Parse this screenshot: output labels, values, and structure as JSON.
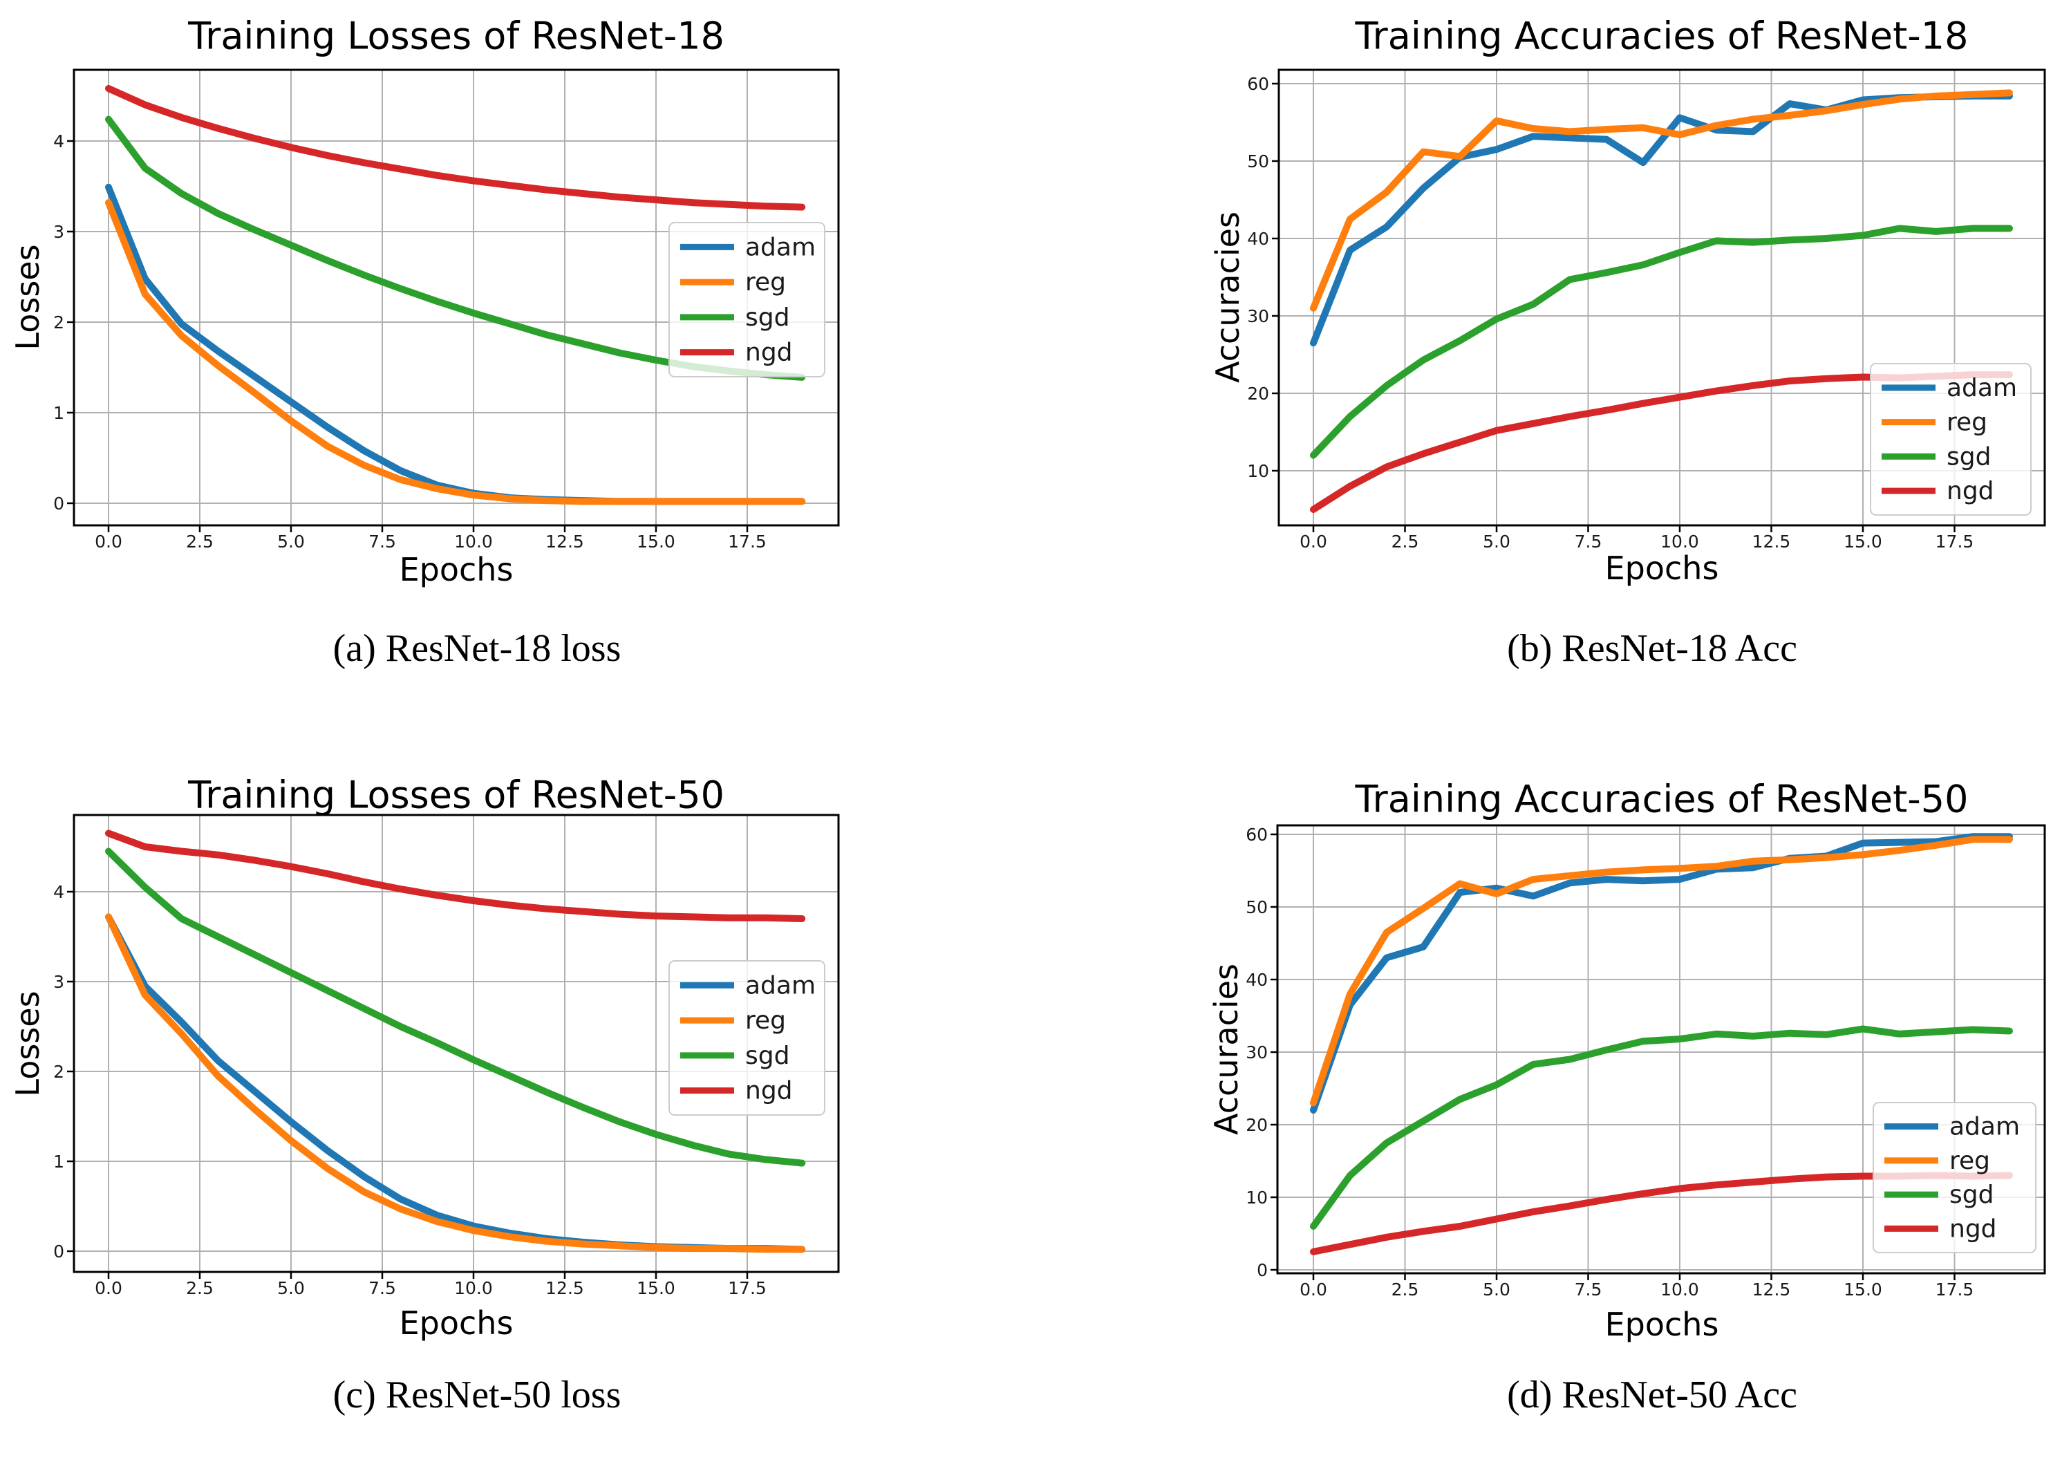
{
  "page": {
    "background": "#ffffff"
  },
  "colors": {
    "adam": "#1f77b4",
    "reg": "#ff7f0e",
    "sgd": "#2ca02c",
    "ngd": "#d62728",
    "grid": "#b0b0b0",
    "spine": "#000000",
    "legend_border": "#cccccc"
  },
  "chart_data": [
    {
      "id": "resnet18-loss",
      "type": "line",
      "title": "Training Losses of ResNet-18",
      "xlabel": "Epochs",
      "ylabel": "Losses",
      "caption": "(a) ResNet-18 loss",
      "x": [
        0,
        1,
        2,
        3,
        4,
        5,
        6,
        7,
        8,
        9,
        10,
        11,
        12,
        13,
        14,
        15,
        16,
        17,
        18,
        19
      ],
      "xlim": [
        -0.95,
        19.95
      ],
      "ylim": [
        -0.24,
        4.79
      ],
      "xticks": {
        "values": [
          0,
          2.5,
          5,
          7.5,
          10,
          12.5,
          15,
          17.5
        ],
        "labels": [
          "0.0",
          "2.5",
          "5.0",
          "7.5",
          "10.0",
          "12.5",
          "15.0",
          "17.5"
        ]
      },
      "yticks": {
        "values": [
          0,
          1,
          2,
          3,
          4
        ],
        "labels": [
          "0",
          "1",
          "2",
          "3",
          "4"
        ]
      },
      "grid": true,
      "legend_loc": "center right",
      "series": [
        {
          "name": "adam",
          "color": "#1f77b4",
          "values": [
            3.49,
            2.48,
            1.98,
            1.68,
            1.4,
            1.12,
            0.84,
            0.58,
            0.36,
            0.2,
            0.11,
            0.06,
            0.04,
            0.03,
            0.02,
            0.02,
            0.02,
            0.02,
            0.02,
            0.02
          ]
        },
        {
          "name": "reg",
          "color": "#ff7f0e",
          "values": [
            3.32,
            2.31,
            1.85,
            1.52,
            1.22,
            0.91,
            0.63,
            0.42,
            0.26,
            0.16,
            0.09,
            0.05,
            0.03,
            0.02,
            0.02,
            0.02,
            0.02,
            0.02,
            0.02,
            0.02
          ]
        },
        {
          "name": "sgd",
          "color": "#2ca02c",
          "values": [
            4.24,
            3.7,
            3.42,
            3.2,
            3.02,
            2.85,
            2.68,
            2.52,
            2.37,
            2.23,
            2.1,
            1.98,
            1.86,
            1.76,
            1.66,
            1.58,
            1.51,
            1.46,
            1.42,
            1.39
          ]
        },
        {
          "name": "ngd",
          "color": "#d62728",
          "values": [
            4.58,
            4.4,
            4.26,
            4.14,
            4.03,
            3.93,
            3.84,
            3.76,
            3.69,
            3.62,
            3.56,
            3.51,
            3.46,
            3.42,
            3.38,
            3.35,
            3.32,
            3.3,
            3.28,
            3.27
          ]
        }
      ]
    },
    {
      "id": "resnet18-acc",
      "type": "line",
      "title": "Training Accuracies of ResNet-18",
      "xlabel": "Epochs",
      "ylabel": "Accuracies",
      "caption": "(b) ResNet-18 Acc",
      "x": [
        0,
        1,
        2,
        3,
        4,
        5,
        6,
        7,
        8,
        9,
        10,
        11,
        12,
        13,
        14,
        15,
        16,
        17,
        18,
        19
      ],
      "xlim": [
        -0.95,
        19.95
      ],
      "ylim": [
        2.95,
        61.8
      ],
      "xticks": {
        "values": [
          0,
          2.5,
          5,
          7.5,
          10,
          12.5,
          15,
          17.5
        ],
        "labels": [
          "0.0",
          "2.5",
          "5.0",
          "7.5",
          "10.0",
          "12.5",
          "15.0",
          "17.5"
        ]
      },
      "yticks": {
        "values": [
          10,
          20,
          30,
          40,
          50,
          60
        ],
        "labels": [
          "10",
          "20",
          "30",
          "40",
          "50",
          "60"
        ]
      },
      "grid": true,
      "legend_loc": "lower right",
      "series": [
        {
          "name": "adam",
          "color": "#1f77b4",
          "values": [
            26.5,
            38.5,
            41.5,
            46.5,
            50.5,
            51.5,
            53.2,
            53.0,
            52.8,
            49.8,
            55.6,
            54.0,
            53.8,
            57.4,
            56.6,
            57.9,
            58.2,
            58.3,
            58.4,
            58.4
          ]
        },
        {
          "name": "reg",
          "color": "#ff7f0e",
          "values": [
            31.0,
            42.5,
            46.0,
            51.2,
            50.6,
            55.2,
            54.2,
            53.8,
            54.1,
            54.3,
            53.4,
            54.6,
            55.4,
            55.9,
            56.5,
            57.3,
            58.0,
            58.4,
            58.6,
            58.8
          ]
        },
        {
          "name": "sgd",
          "color": "#2ca02c",
          "values": [
            12.0,
            17.0,
            21.0,
            24.3,
            26.8,
            29.6,
            31.5,
            34.7,
            35.6,
            36.6,
            38.2,
            39.7,
            39.5,
            39.8,
            40.0,
            40.4,
            41.3,
            40.9,
            41.3,
            41.3
          ]
        },
        {
          "name": "ngd",
          "color": "#d62728",
          "values": [
            5.0,
            8.0,
            10.5,
            12.2,
            13.7,
            15.2,
            16.1,
            17.0,
            17.8,
            18.7,
            19.5,
            20.3,
            21.0,
            21.6,
            21.9,
            22.1,
            22.0,
            22.2,
            22.4,
            22.4
          ]
        }
      ]
    },
    {
      "id": "resnet50-loss",
      "type": "line",
      "title": "Training Losses of ResNet-50",
      "xlabel": "Epochs",
      "ylabel": "Losses",
      "caption": "(c) ResNet-50 loss",
      "x": [
        0,
        1,
        2,
        3,
        4,
        5,
        6,
        7,
        8,
        9,
        10,
        11,
        12,
        13,
        14,
        15,
        16,
        17,
        18,
        19
      ],
      "xlim": [
        -0.95,
        19.95
      ],
      "ylim": [
        -0.23,
        4.85
      ],
      "xticks": {
        "values": [
          0,
          2.5,
          5,
          7.5,
          10,
          12.5,
          15,
          17.5
        ],
        "labels": [
          "0.0",
          "2.5",
          "5.0",
          "7.5",
          "10.0",
          "12.5",
          "15.0",
          "17.5"
        ]
      },
      "yticks": {
        "values": [
          0,
          1,
          2,
          3,
          4
        ],
        "labels": [
          "0",
          "1",
          "2",
          "3",
          "4"
        ]
      },
      "grid": true,
      "legend_loc": "center right",
      "series": [
        {
          "name": "adam",
          "color": "#1f77b4",
          "values": [
            3.72,
            2.95,
            2.55,
            2.12,
            1.78,
            1.44,
            1.12,
            0.83,
            0.58,
            0.4,
            0.28,
            0.2,
            0.14,
            0.1,
            0.07,
            0.05,
            0.04,
            0.03,
            0.03,
            0.02
          ]
        },
        {
          "name": "reg",
          "color": "#ff7f0e",
          "values": [
            3.72,
            2.85,
            2.42,
            1.95,
            1.58,
            1.23,
            0.92,
            0.66,
            0.47,
            0.33,
            0.23,
            0.16,
            0.11,
            0.08,
            0.06,
            0.04,
            0.03,
            0.03,
            0.02,
            0.02
          ]
        },
        {
          "name": "sgd",
          "color": "#2ca02c",
          "values": [
            4.45,
            4.05,
            3.7,
            3.5,
            3.3,
            3.1,
            2.9,
            2.7,
            2.5,
            2.32,
            2.13,
            1.95,
            1.77,
            1.6,
            1.44,
            1.3,
            1.18,
            1.08,
            1.02,
            0.98
          ]
        },
        {
          "name": "ngd",
          "color": "#d62728",
          "values": [
            4.65,
            4.5,
            4.45,
            4.41,
            4.35,
            4.28,
            4.2,
            4.11,
            4.03,
            3.96,
            3.9,
            3.85,
            3.81,
            3.78,
            3.75,
            3.73,
            3.72,
            3.71,
            3.71,
            3.7
          ]
        }
      ]
    },
    {
      "id": "resnet50-acc",
      "type": "line",
      "title": "Training Accuracies of ResNet-50",
      "xlabel": "Epochs",
      "ylabel": "Accuracies",
      "caption": "(d) ResNet-50 Acc",
      "x": [
        0,
        1,
        2,
        3,
        4,
        5,
        6,
        7,
        8,
        9,
        10,
        11,
        12,
        13,
        14,
        15,
        16,
        17,
        18,
        19
      ],
      "xlim": [
        -0.95,
        19.95
      ],
      "ylim": [
        -0.48,
        61.2
      ],
      "xticks": {
        "values": [
          0,
          2.5,
          5,
          7.5,
          10,
          12.5,
          15,
          17.5
        ],
        "labels": [
          "0.0",
          "2.5",
          "5.0",
          "7.5",
          "10.0",
          "12.5",
          "15.0",
          "17.5"
        ]
      },
      "yticks": {
        "values": [
          0,
          10,
          20,
          30,
          40,
          50,
          60
        ],
        "labels": [
          "0",
          "10",
          "20",
          "30",
          "40",
          "50",
          "60"
        ]
      },
      "grid": true,
      "legend_loc": "lower right",
      "series": [
        {
          "name": "adam",
          "color": "#1f77b4",
          "values": [
            22.0,
            36.5,
            43.0,
            44.5,
            52.0,
            52.6,
            51.5,
            53.3,
            53.8,
            53.6,
            53.8,
            55.2,
            55.4,
            56.7,
            57.0,
            58.8,
            58.9,
            59.0,
            59.7,
            59.7
          ]
        },
        {
          "name": "reg",
          "color": "#ff7f0e",
          "values": [
            23.0,
            38.0,
            46.5,
            49.8,
            53.2,
            51.8,
            53.8,
            54.3,
            54.8,
            55.1,
            55.3,
            55.6,
            56.3,
            56.5,
            56.8,
            57.2,
            57.8,
            58.5,
            59.3,
            59.3
          ]
        },
        {
          "name": "sgd",
          "color": "#2ca02c",
          "values": [
            6.0,
            13.0,
            17.5,
            20.5,
            23.5,
            25.5,
            28.3,
            29.0,
            30.3,
            31.5,
            31.8,
            32.5,
            32.2,
            32.6,
            32.4,
            33.2,
            32.5,
            32.8,
            33.1,
            32.9
          ]
        },
        {
          "name": "ngd",
          "color": "#d62728",
          "values": [
            2.5,
            3.5,
            4.5,
            5.3,
            6.0,
            7.0,
            8.0,
            8.8,
            9.7,
            10.5,
            11.2,
            11.7,
            12.1,
            12.5,
            12.8,
            12.9,
            12.9,
            13.0,
            12.9,
            13.0
          ]
        }
      ]
    }
  ]
}
